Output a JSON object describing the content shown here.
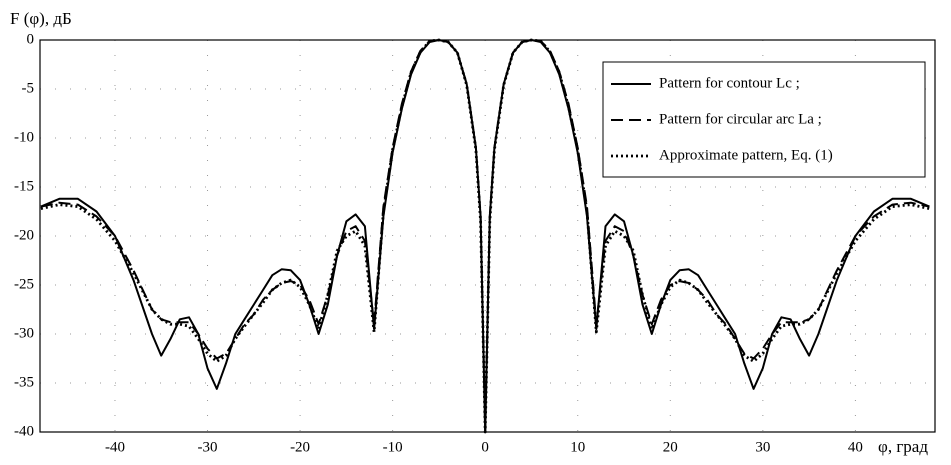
{
  "chart_data": {
    "type": "line",
    "ylabel": "F (φ), дБ",
    "xlabel": "φ, град",
    "x": [
      -48,
      -46,
      -44,
      -42,
      -40,
      -38,
      -36,
      -35,
      -34,
      -33,
      -32,
      -31,
      -30,
      -29,
      -28,
      -27,
      -26,
      -25,
      -24,
      -23,
      -22,
      -21,
      -20,
      -19,
      -18,
      -17,
      -16,
      -15,
      -14,
      -13,
      -12,
      -11,
      -10,
      -9,
      -8,
      -7,
      -6,
      -5,
      -4,
      -3,
      -2,
      -1,
      -0.5,
      0,
      0.5,
      1,
      2,
      3,
      4,
      5,
      6,
      7,
      8,
      9,
      10,
      11,
      12,
      13,
      14,
      15,
      16,
      17,
      18,
      19,
      20,
      21,
      22,
      23,
      24,
      25,
      26,
      27,
      28,
      29,
      30,
      31,
      32,
      33,
      34,
      35,
      36,
      38,
      40,
      42,
      44,
      46,
      48
    ],
    "series": [
      {
        "name": "Pattern for contour Lc ;",
        "color": "#000000",
        "dash": "solid",
        "values": [
          -17,
          -16.2,
          -16.2,
          -17.5,
          -20,
          -24.5,
          -30,
          -32.2,
          -30.5,
          -28.5,
          -28.3,
          -30,
          -33.5,
          -35.6,
          -33,
          -30,
          -28.5,
          -27,
          -25.5,
          -24,
          -23.4,
          -23.5,
          -24.5,
          -27,
          -30,
          -27,
          -22,
          -18.5,
          -17.8,
          -19,
          -29.5,
          -18,
          -11.5,
          -7,
          -3.5,
          -1.3,
          -0.2,
          0,
          -0.2,
          -1.3,
          -4.5,
          -11,
          -18,
          -40,
          -18,
          -11,
          -4.5,
          -1.3,
          -0.2,
          0,
          -0.2,
          -1.3,
          -3.5,
          -7,
          -11.5,
          -18,
          -29.5,
          -19,
          -17.8,
          -18.5,
          -22,
          -27,
          -30,
          -27,
          -24.5,
          -23.5,
          -23.4,
          -24,
          -25.5,
          -27,
          -28.5,
          -30,
          -33,
          -35.6,
          -33.5,
          -30,
          -28.3,
          -28.5,
          -30.5,
          -32.2,
          -30,
          -24.5,
          -20,
          -17.5,
          -16.2,
          -16.2,
          -17
        ]
      },
      {
        "name": "Pattern for circular arc La ;",
        "color": "#000000",
        "dash": "dashed",
        "values": [
          -17,
          -16.6,
          -16.8,
          -18,
          -20,
          -23.5,
          -27.5,
          -28.5,
          -28.8,
          -28.8,
          -28.8,
          -30,
          -31.5,
          -32.5,
          -32,
          -30.5,
          -29,
          -28,
          -26.5,
          -25.5,
          -24.8,
          -24.6,
          -25,
          -26.5,
          -29,
          -26,
          -22,
          -19.5,
          -19,
          -20.5,
          -29,
          -17,
          -11,
          -6.5,
          -3.2,
          -1.1,
          -0.1,
          0,
          -0.2,
          -1.3,
          -4.5,
          -11,
          -18,
          -40,
          -18,
          -11,
          -4.5,
          -1.3,
          -0.2,
          0,
          -0.1,
          -1.1,
          -3.2,
          -6.5,
          -11,
          -17,
          -29,
          -20.5,
          -19,
          -19.5,
          -22,
          -26,
          -29,
          -26.5,
          -25,
          -24.6,
          -24.8,
          -25.5,
          -26.5,
          -28,
          -29,
          -30.5,
          -32,
          -32.5,
          -31.5,
          -30,
          -28.8,
          -28.8,
          -28.8,
          -28.5,
          -27.5,
          -23.5,
          -20,
          -18,
          -16.8,
          -16.6,
          -17
        ]
      },
      {
        "name": "Approximate pattern, Eq. (1)",
        "color": "#000000",
        "dash": "dotted",
        "values": [
          -17.2,
          -16.8,
          -17,
          -18.3,
          -20.5,
          -23.8,
          -27.5,
          -28.5,
          -29,
          -29,
          -29.2,
          -30.5,
          -32,
          -32.8,
          -32.2,
          -30.5,
          -29.2,
          -28,
          -26.8,
          -25.5,
          -24.8,
          -24.5,
          -25.2,
          -27,
          -29.5,
          -26,
          -21.5,
          -20,
          -19.5,
          -21,
          -29.8,
          -17.5,
          -11.2,
          -6.8,
          -3.3,
          -1.2,
          -0.1,
          0,
          -0.2,
          -1.3,
          -4.6,
          -11.2,
          -18.5,
          -40,
          -18.5,
          -11.2,
          -4.6,
          -1.3,
          -0.2,
          0,
          -0.1,
          -1.2,
          -3.3,
          -6.8,
          -11.2,
          -17.5,
          -29.8,
          -21,
          -19.5,
          -20,
          -21.5,
          -26,
          -29.5,
          -27,
          -25.2,
          -24.5,
          -24.8,
          -25.5,
          -26.8,
          -28,
          -29.2,
          -30.5,
          -32.2,
          -32.8,
          -32,
          -30.5,
          -29.2,
          -29,
          -29,
          -28.5,
          -27.5,
          -23.8,
          -20.5,
          -18.3,
          -17,
          -16.8,
          -17.2
        ]
      }
    ],
    "xlim": [
      -48.1,
      48.6
    ],
    "ylim": [
      -40,
      0
    ],
    "xticks": [
      -40,
      -30,
      -20,
      -10,
      0,
      10,
      20,
      30,
      40
    ],
    "yticks": [
      0,
      -5,
      -10,
      -15,
      -20,
      -25,
      -30,
      -35,
      -40
    ],
    "grid": true,
    "legend": "upper right"
  }
}
